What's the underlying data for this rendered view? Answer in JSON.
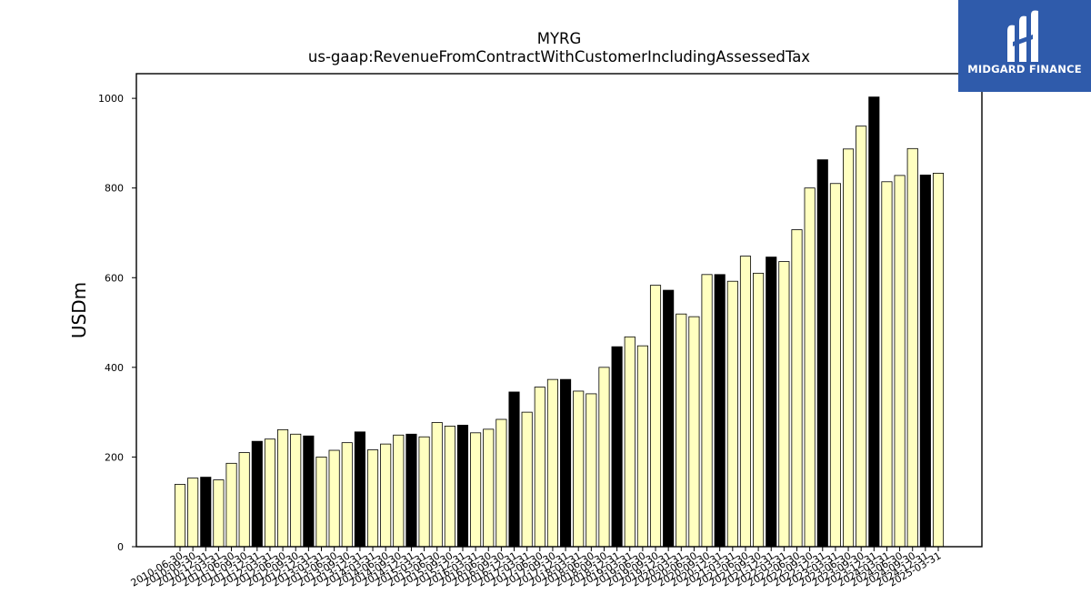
{
  "colors": {
    "bar_fill": "#ffffc0",
    "bar_highlight": "#000000",
    "bar_stroke": "#000000",
    "logo_bg": "#2f5bab",
    "logo_fg": "#ffffff"
  },
  "logo": {
    "text": "MIDGARD FINANCE",
    "icon": "midgard-logo-icon"
  },
  "chart_data": {
    "type": "bar",
    "title": "MYRG",
    "subtitle": "us-gaap:RevenueFromContractWithCustomerIncludingAssessedTax",
    "xlabel": "",
    "ylabel": "USDm",
    "ylim": [
      0,
      1055
    ],
    "yticks": [
      0,
      200,
      400,
      600,
      800,
      1000
    ],
    "grid": false,
    "categories": [
      "2010-06-30",
      "2010-09-30",
      "2010-12-31",
      "2011-03-31",
      "2011-06-30",
      "2011-09-30",
      "2011-12-31",
      "2012-03-31",
      "2012-06-30",
      "2012-09-30",
      "2012-12-31",
      "2013-03-31",
      "2013-06-30",
      "2013-09-30",
      "2013-12-31",
      "2014-03-31",
      "2014-06-30",
      "2014-09-30",
      "2014-12-31",
      "2015-03-31",
      "2015-06-30",
      "2015-09-30",
      "2015-12-31",
      "2016-03-31",
      "2016-06-30",
      "2016-09-30",
      "2016-12-31",
      "2017-03-31",
      "2017-06-30",
      "2017-09-30",
      "2017-12-31",
      "2018-03-31",
      "2018-06-30",
      "2018-09-30",
      "2018-12-31",
      "2019-03-31",
      "2019-06-30",
      "2019-09-30",
      "2019-12-31",
      "2020-03-31",
      "2020-06-30",
      "2020-09-30",
      "2020-12-31",
      "2021-03-31",
      "2021-06-30",
      "2021-09-30",
      "2021-12-31",
      "2022-03-31",
      "2022-06-30",
      "2022-09-30",
      "2022-12-31",
      "2023-03-31",
      "2023-06-30",
      "2023-09-30",
      "2023-12-31",
      "2024-03-31",
      "2024-06-30",
      "2024-09-30",
      "2024-12-31",
      "2025-03-31"
    ],
    "values": [
      139,
      153,
      155,
      149,
      186,
      210,
      235,
      240,
      261,
      251,
      247,
      200,
      215,
      232,
      256,
      216,
      229,
      249,
      251,
      245,
      277,
      269,
      271,
      254,
      262,
      284,
      345,
      300,
      356,
      373,
      373,
      347,
      341,
      400,
      446,
      468,
      448,
      583,
      572,
      519,
      513,
      607,
      607,
      592,
      648,
      610,
      646,
      636,
      707,
      800,
      863,
      810,
      887,
      938,
      1003,
      814,
      828,
      888,
      829,
      833
    ],
    "highlighted": [
      false,
      false,
      true,
      false,
      false,
      false,
      true,
      false,
      false,
      false,
      true,
      false,
      false,
      false,
      true,
      false,
      false,
      false,
      true,
      false,
      false,
      false,
      true,
      false,
      false,
      false,
      true,
      false,
      false,
      false,
      true,
      false,
      false,
      false,
      true,
      false,
      false,
      false,
      true,
      false,
      false,
      false,
      true,
      false,
      false,
      false,
      true,
      false,
      false,
      false,
      true,
      false,
      false,
      false,
      true,
      false,
      false,
      false,
      true,
      false
    ]
  }
}
